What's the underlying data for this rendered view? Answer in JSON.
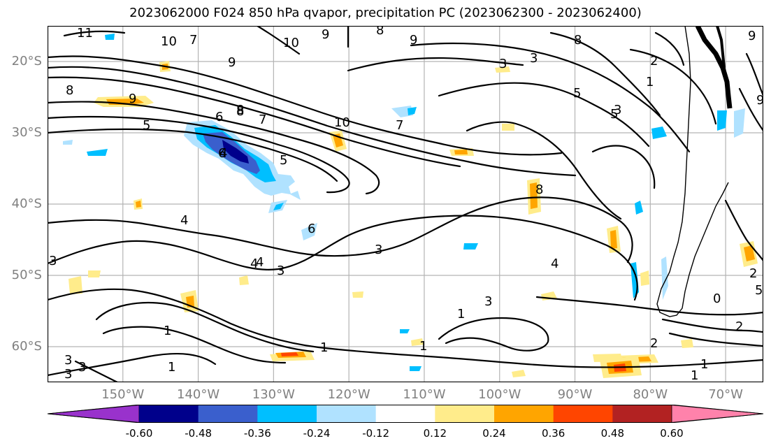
{
  "title": "2023062000 F024 850 hPa qvapor, precipitation PC (2023062300 - 2023062400)",
  "lat_ticks": [
    "20°S",
    "30°S",
    "40°S",
    "50°S",
    "60°S"
  ],
  "lon_ticks": [
    "150°W",
    "140°W",
    "130°W",
    "120°W",
    "110°W",
    "100°W",
    "90°W",
    "80°W",
    "70°W"
  ],
  "colorbar": {
    "ticks": [
      "-0.60",
      "-0.48",
      "-0.36",
      "-0.24",
      "-0.12",
      "0.12",
      "0.24",
      "0.36",
      "0.48",
      "0.60"
    ],
    "colors": [
      "#9932cc",
      "#00008b",
      "#3a5fcd",
      "#00bfff",
      "#b0e2ff",
      "#ffffff",
      "#ffec8b",
      "#ffa500",
      "#ff4500",
      "#b22222",
      "#ff82ab"
    ]
  },
  "contour_labels": [
    "11",
    "10",
    "7",
    "9",
    "10",
    "9",
    "8",
    "9",
    "3",
    "8",
    "8",
    "9",
    "9",
    "8",
    "9",
    "6",
    "8",
    "7",
    "5",
    "10",
    "7",
    "6",
    "5",
    "4",
    "5",
    "3",
    "5",
    "2",
    "1",
    "3",
    "8",
    "3",
    "4",
    "4",
    "6",
    "3",
    "4",
    "3",
    "3",
    "4",
    "3",
    "1",
    "1",
    "1",
    "1",
    "1",
    "2",
    "2",
    "1",
    "1",
    "3",
    "3",
    "2",
    "5",
    "0"
  ],
  "chart_data": {
    "type": "map",
    "projection": "PlateCarree",
    "lon_range": [
      -160,
      -65
    ],
    "lat_range": [
      -65,
      -15
    ],
    "grid": true,
    "variable_contour": "850 hPa qvapor",
    "variable_fill": "precipitation PC",
    "fill_levels": [
      -0.6,
      -0.48,
      -0.36,
      -0.24,
      -0.12,
      0.12,
      0.24,
      0.36,
      0.48,
      0.6
    ],
    "fill_colors": [
      "#9932cc",
      "#00008b",
      "#3a5fcd",
      "#00bfff",
      "#b0e2ff",
      "#ffffff",
      "#ffec8b",
      "#ffa500",
      "#ff4500",
      "#b22222",
      "#ff82ab"
    ]
  }
}
